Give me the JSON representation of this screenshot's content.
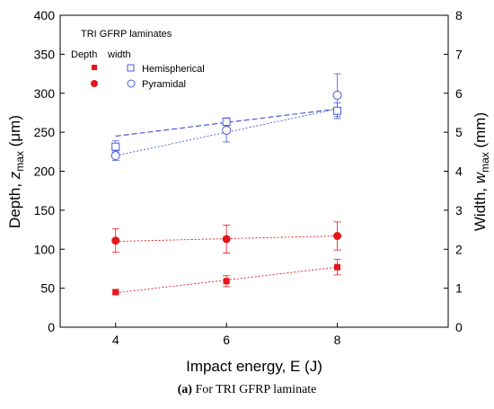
{
  "chart_data": {
    "type": "scatter",
    "title": "TRI GFRP laminates",
    "xlabel": "Impact energy, E (J)",
    "ylabel_left": {
      "main": "Depth, ",
      "var": "z",
      "sub": "max",
      "unit": " (μm)"
    },
    "ylabel_right": {
      "main": "Width, ",
      "var": "w",
      "sub": "max",
      "unit": " (mm)"
    },
    "xlim": [
      3,
      10
    ],
    "ylim_left": [
      0,
      400
    ],
    "ylim_right": [
      0,
      8
    ],
    "xticks": [
      4,
      6,
      8
    ],
    "yticks_left": [
      0,
      50,
      100,
      150,
      200,
      250,
      300,
      350,
      400
    ],
    "yticks_right": [
      0,
      1,
      2,
      3,
      4,
      5,
      6,
      7,
      8
    ],
    "grid": false,
    "legend_headers": [
      "Depth",
      "width"
    ],
    "legend_labels": [
      "Hemispherical",
      "Pyramidal"
    ],
    "colors": {
      "depth": "#e3161b",
      "width": "#4b5bd6"
    },
    "series": [
      {
        "name": "Hemispherical",
        "metric": "depth",
        "axis": "left",
        "marker": "square-filled",
        "color": "#e3161b",
        "x": [
          4,
          6,
          8
        ],
        "y": [
          45,
          59,
          77
        ],
        "err": [
          3,
          7,
          10
        ],
        "fit": [
          44,
          77
        ]
      },
      {
        "name": "Pyramidal",
        "metric": "depth",
        "axis": "left",
        "marker": "circle-filled",
        "color": "#e3161b",
        "x": [
          4,
          6,
          8
        ],
        "y": [
          111,
          113,
          117
        ],
        "err": [
          15,
          18,
          18
        ],
        "fit": [
          110,
          117
        ]
      },
      {
        "name": "Hemispherical",
        "metric": "width",
        "axis": "right",
        "marker": "square-open",
        "color": "#4b5bd6",
        "x": [
          4,
          6,
          8
        ],
        "y": [
          4.63,
          5.27,
          5.55
        ],
        "err": [
          0.15,
          0.1,
          0.2
        ],
        "fit": [
          4.9,
          5.6
        ],
        "dash": "long"
      },
      {
        "name": "Pyramidal",
        "metric": "width",
        "axis": "right",
        "marker": "circle-open",
        "color": "#4b5bd6",
        "x": [
          4,
          6,
          8
        ],
        "y": [
          4.4,
          5.05,
          5.95
        ],
        "err": [
          0.12,
          0.3,
          0.55
        ],
        "fit": [
          4.4,
          5.6
        ],
        "dash": "short"
      }
    ]
  },
  "caption": {
    "label": "(a)",
    "text": " For TRI GFRP laminate"
  }
}
